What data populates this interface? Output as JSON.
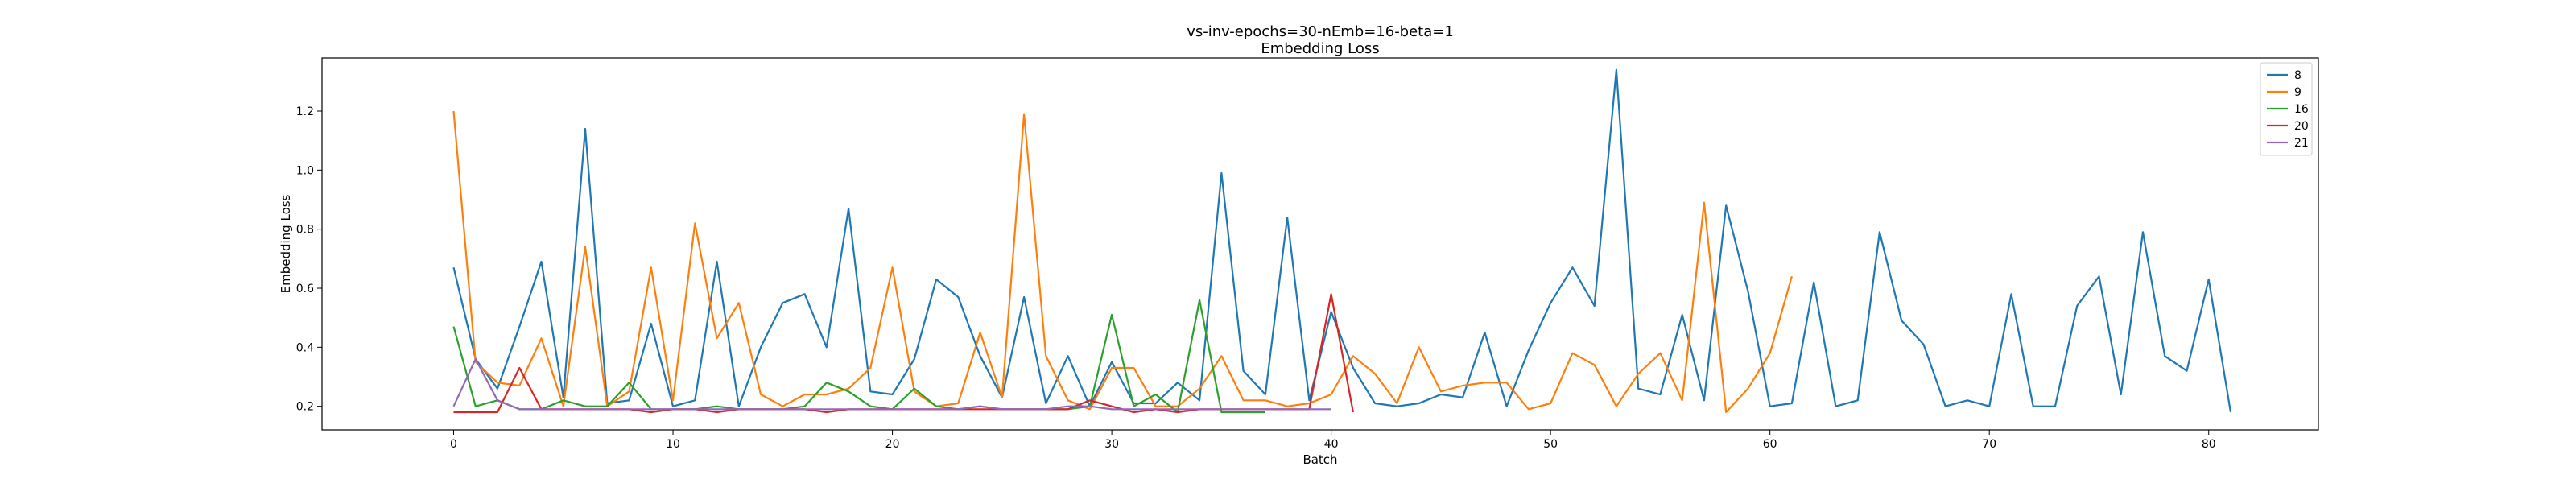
{
  "chart_data": {
    "type": "line",
    "title": "vs-inv-epochs=30-nEmb=16-beta=1",
    "subtitle": "Embedding Loss",
    "xlabel": "Batch",
    "ylabel": "Embedding Loss",
    "xlim": [
      -6,
      85
    ],
    "ylim": [
      0.12,
      1.38
    ],
    "xticks": [
      0,
      10,
      20,
      30,
      40,
      50,
      60,
      70,
      80
    ],
    "yticks": [
      0.2,
      0.4,
      0.6,
      0.8,
      1.0,
      1.2
    ],
    "ytick_labels": [
      "0.2",
      "0.4",
      "0.6",
      "0.8",
      "1.0",
      "1.2"
    ],
    "legend_position": "top-right",
    "grid": false,
    "series": [
      {
        "name": "8",
        "color": "#1f77b4",
        "x": [
          0,
          1,
          2,
          3,
          4,
          5,
          6,
          7,
          8,
          9,
          10,
          11,
          12,
          13,
          14,
          15,
          16,
          17,
          18,
          19,
          20,
          21,
          22,
          23,
          24,
          25,
          26,
          27,
          28,
          29,
          30,
          31,
          32,
          33,
          34,
          35,
          36,
          37,
          38,
          39,
          40,
          41,
          42,
          43,
          44,
          45,
          46,
          47,
          48,
          49,
          50,
          51,
          52,
          53,
          54,
          55,
          56,
          57,
          58,
          59,
          60,
          61,
          62,
          63,
          64,
          65,
          66,
          67,
          68,
          69,
          70,
          71,
          72,
          73,
          74,
          75,
          76,
          77,
          78,
          79,
          80,
          81
        ],
        "values": [
          0.67,
          0.36,
          0.26,
          0.47,
          0.69,
          0.23,
          1.14,
          0.21,
          0.22,
          0.48,
          0.2,
          0.22,
          0.69,
          0.2,
          0.4,
          0.55,
          0.58,
          0.4,
          0.87,
          0.25,
          0.24,
          0.36,
          0.63,
          0.57,
          0.37,
          0.23,
          0.57,
          0.21,
          0.37,
          0.2,
          0.35,
          0.21,
          0.21,
          0.28,
          0.22,
          0.99,
          0.32,
          0.24,
          0.84,
          0.22,
          0.52,
          0.33,
          0.21,
          0.2,
          0.21,
          0.24,
          0.23,
          0.45,
          0.2,
          0.39,
          0.55,
          0.67,
          0.54,
          1.34,
          0.26,
          0.24,
          0.51,
          0.22,
          0.88,
          0.59,
          0.2,
          0.21,
          0.62,
          0.2,
          0.22,
          0.79,
          0.49,
          0.41,
          0.2,
          0.22,
          0.2,
          0.58,
          0.2,
          0.2,
          0.54,
          0.64,
          0.24,
          0.79,
          0.37,
          0.32,
          0.63,
          0.18
        ]
      },
      {
        "name": "9",
        "color": "#ff7f0e",
        "x": [
          0,
          1,
          2,
          3,
          4,
          5,
          6,
          7,
          8,
          9,
          10,
          11,
          12,
          13,
          14,
          15,
          16,
          17,
          18,
          19,
          20,
          21,
          22,
          23,
          24,
          25,
          26,
          27,
          28,
          29,
          30,
          31,
          32,
          33,
          34,
          35,
          36,
          37,
          38,
          39,
          40,
          41,
          42,
          43,
          44,
          45,
          46,
          47,
          48,
          49,
          50,
          51,
          52,
          53,
          54,
          55,
          56,
          57,
          58,
          59,
          60,
          61
        ],
        "values": [
          1.2,
          0.35,
          0.28,
          0.27,
          0.43,
          0.2,
          0.74,
          0.2,
          0.25,
          0.67,
          0.22,
          0.82,
          0.43,
          0.55,
          0.24,
          0.2,
          0.24,
          0.24,
          0.26,
          0.33,
          0.67,
          0.25,
          0.2,
          0.21,
          0.45,
          0.23,
          1.19,
          0.37,
          0.22,
          0.19,
          0.33,
          0.33,
          0.2,
          0.2,
          0.26,
          0.37,
          0.22,
          0.22,
          0.2,
          0.21,
          0.24,
          0.37,
          0.31,
          0.21,
          0.4,
          0.25,
          0.27,
          0.28,
          0.28,
          0.19,
          0.21,
          0.38,
          0.34,
          0.2,
          0.31,
          0.38,
          0.22,
          0.89,
          0.18,
          0.26,
          0.38,
          0.64
        ]
      },
      {
        "name": "16",
        "color": "#2ca02c",
        "x": [
          0,
          1,
          2,
          3,
          4,
          5,
          6,
          7,
          8,
          9,
          10,
          11,
          12,
          13,
          14,
          15,
          16,
          17,
          18,
          19,
          20,
          21,
          22,
          23,
          24,
          25,
          26,
          27,
          28,
          29,
          30,
          31,
          32,
          33,
          34,
          35,
          36,
          37
        ],
        "values": [
          0.47,
          0.2,
          0.22,
          0.19,
          0.19,
          0.22,
          0.2,
          0.2,
          0.28,
          0.19,
          0.19,
          0.19,
          0.2,
          0.19,
          0.19,
          0.19,
          0.2,
          0.28,
          0.25,
          0.2,
          0.19,
          0.26,
          0.2,
          0.19,
          0.2,
          0.19,
          0.19,
          0.19,
          0.19,
          0.2,
          0.51,
          0.2,
          0.24,
          0.18,
          0.56,
          0.18,
          0.18,
          0.18
        ]
      },
      {
        "name": "20",
        "color": "#d62728",
        "x": [
          0,
          1,
          2,
          3,
          4,
          5,
          6,
          7,
          8,
          9,
          10,
          11,
          12,
          13,
          14,
          15,
          16,
          17,
          18,
          19,
          20,
          21,
          22,
          23,
          24,
          25,
          26,
          27,
          28,
          29,
          30,
          31,
          32,
          33,
          34,
          35,
          36,
          37,
          38,
          39,
          40,
          41
        ],
        "values": [
          0.18,
          0.18,
          0.18,
          0.33,
          0.19,
          0.19,
          0.19,
          0.19,
          0.19,
          0.18,
          0.19,
          0.19,
          0.18,
          0.19,
          0.19,
          0.19,
          0.19,
          0.18,
          0.19,
          0.19,
          0.19,
          0.19,
          0.19,
          0.19,
          0.19,
          0.19,
          0.19,
          0.19,
          0.19,
          0.22,
          0.2,
          0.18,
          0.19,
          0.18,
          0.19,
          0.19,
          0.19,
          0.19,
          0.19,
          0.19,
          0.58,
          0.18
        ]
      },
      {
        "name": "21",
        "color": "#9467bd",
        "x": [
          0,
          1,
          2,
          3,
          4,
          5,
          6,
          7,
          8,
          9,
          10,
          11,
          12,
          13,
          14,
          15,
          16,
          17,
          18,
          19,
          20,
          21,
          22,
          23,
          24,
          25,
          26,
          27,
          28,
          29,
          30,
          31,
          32,
          33,
          34,
          35,
          36,
          37,
          38,
          39,
          40
        ],
        "values": [
          0.2,
          0.36,
          0.22,
          0.19,
          0.19,
          0.19,
          0.19,
          0.19,
          0.19,
          0.19,
          0.19,
          0.19,
          0.19,
          0.19,
          0.19,
          0.19,
          0.19,
          0.19,
          0.19,
          0.19,
          0.19,
          0.19,
          0.19,
          0.19,
          0.2,
          0.19,
          0.19,
          0.19,
          0.2,
          0.2,
          0.19,
          0.19,
          0.19,
          0.19,
          0.19,
          0.19,
          0.19,
          0.19,
          0.19,
          0.19,
          0.19
        ]
      }
    ]
  }
}
